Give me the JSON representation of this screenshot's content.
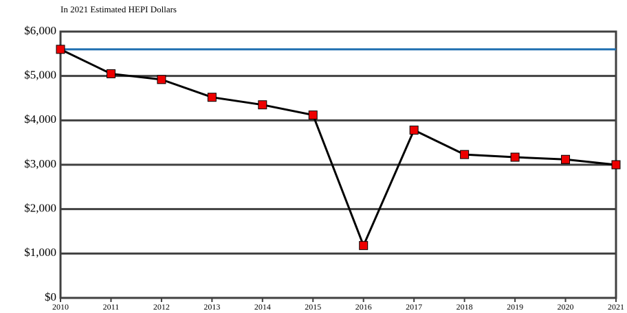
{
  "chart_data": {
    "type": "line",
    "subtitle": "In 2021 Estimated HEPI Dollars",
    "x": [
      2010,
      2011,
      2012,
      2013,
      2014,
      2015,
      2016,
      2017,
      2018,
      2019,
      2020,
      2021
    ],
    "series": [
      {
        "name": null,
        "color": "#000000",
        "marker_color": "#ee0000",
        "values": [
          5600,
          5050,
          4920,
          4520,
          4350,
          4120,
          1180,
          3780,
          3230,
          3170,
          3120,
          3000
        ]
      }
    ],
    "reference_line": {
      "value": 5600,
      "color": "#1f6fb0"
    },
    "xlim": [
      2010,
      2021
    ],
    "xticks": [
      2010,
      2011,
      2012,
      2013,
      2014,
      2015,
      2016,
      2017,
      2018,
      2019,
      2020,
      2021
    ],
    "ylim": [
      0,
      6000
    ],
    "yticks": [
      {
        "value": 0,
        "label": "$0"
      },
      {
        "value": 1000,
        "label": "$1,000"
      },
      {
        "value": 2000,
        "label": "$2,000"
      },
      {
        "value": 3000,
        "label": "$3,000"
      },
      {
        "value": 4000,
        "label": "$4,000"
      },
      {
        "value": 5000,
        "label": "$5,000"
      },
      {
        "value": 6000,
        "label": "$6,000"
      }
    ],
    "grid": true
  }
}
